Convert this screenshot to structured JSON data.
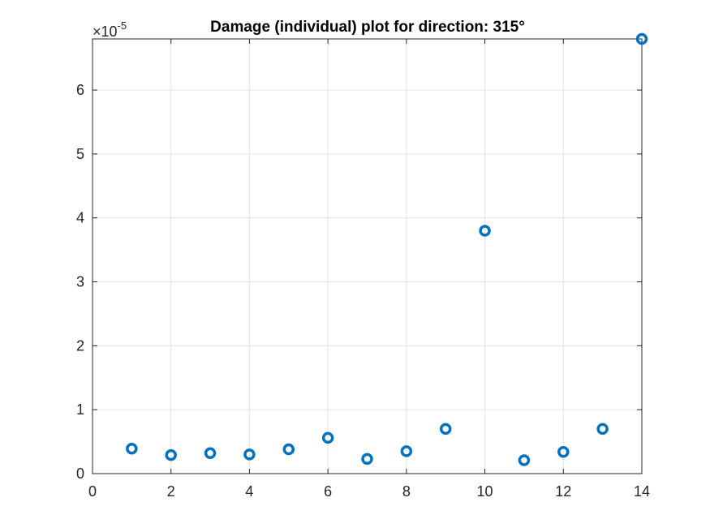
{
  "chart_data": {
    "type": "scatter",
    "title": "Damage (individual) plot for direction: 315°",
    "xlabel": "",
    "ylabel": "",
    "xlim": [
      0,
      14
    ],
    "ylim": [
      0,
      6.8
    ],
    "y_exponent_label": "×10",
    "y_exponent_value": "-5",
    "xticks": [
      0,
      2,
      4,
      6,
      8,
      10,
      12,
      14
    ],
    "xtick_labels": [
      "0",
      "2",
      "4",
      "6",
      "8",
      "10",
      "12",
      "14"
    ],
    "yticks": [
      0,
      1,
      2,
      3,
      4,
      5,
      6
    ],
    "ytick_labels": [
      "0",
      "1",
      "2",
      "3",
      "4",
      "5",
      "6"
    ],
    "grid": true,
    "marker": "circle",
    "marker_color": "#0072BD",
    "series": [
      {
        "x": [
          1,
          2,
          3,
          4,
          5,
          6,
          7,
          8,
          9,
          10,
          11,
          12,
          13,
          14
        ],
        "y": [
          0.39,
          0.29,
          0.32,
          0.3,
          0.38,
          0.56,
          0.23,
          0.35,
          0.7,
          3.8,
          0.21,
          0.34,
          0.7,
          6.8
        ]
      }
    ]
  }
}
